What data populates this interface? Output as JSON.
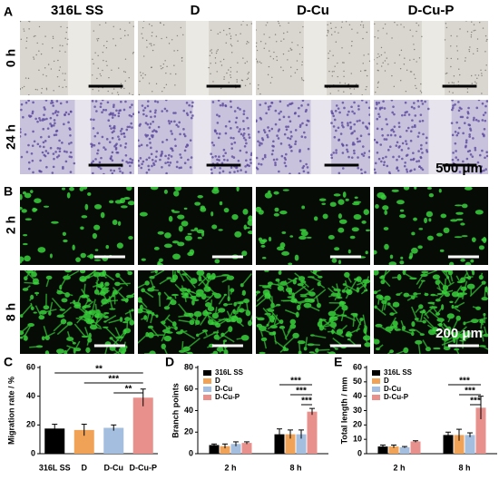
{
  "figure": {
    "panel_labels": [
      "A",
      "B"
    ],
    "columns": [
      "316L SS",
      "D",
      "D-Cu",
      "D-Cu-P"
    ],
    "rows_a": [
      "0 h",
      "24 h"
    ],
    "rows_b": [
      "2 h",
      "8 h"
    ],
    "scale_a": "500 μm",
    "scale_b": "200 μm"
  },
  "chart_data": [
    {
      "type": "bar",
      "panel": "C",
      "ylabel": "Migration rate / %",
      "categories": [
        "316L SS",
        "D",
        "D-Cu",
        "D-Cu-P"
      ],
      "values": [
        17.5,
        16.5,
        18,
        39
      ],
      "errors": [
        3,
        4,
        2,
        6
      ],
      "colors": [
        "#000000",
        "#f0a257",
        "#a3bede",
        "#e8918c"
      ],
      "ylim": [
        0,
        60
      ],
      "yticks": [
        0,
        20,
        40,
        60
      ],
      "significance": [
        {
          "from": "316L SS",
          "to": "D-Cu-P",
          "label": "**"
        },
        {
          "from": "D",
          "to": "D-Cu-P",
          "label": "***"
        },
        {
          "from": "D-Cu",
          "to": "D-Cu-P",
          "label": "**"
        }
      ]
    },
    {
      "type": "grouped-bar",
      "panel": "D",
      "ylabel": "Branch points",
      "categories": [
        "2 h",
        "8 h"
      ],
      "series": [
        {
          "name": "316L SS",
          "color": "#000000",
          "values": [
            8,
            18
          ],
          "errors": [
            1,
            5
          ]
        },
        {
          "name": "D",
          "color": "#f0a257",
          "values": [
            7,
            18
          ],
          "errors": [
            2,
            4
          ]
        },
        {
          "name": "D-Cu",
          "color": "#a3bede",
          "values": [
            9,
            18
          ],
          "errors": [
            2,
            4
          ]
        },
        {
          "name": "D-Cu-P",
          "color": "#e8918c",
          "values": [
            10,
            39
          ],
          "errors": [
            1,
            3
          ]
        }
      ],
      "ylim": [
        0,
        80
      ],
      "yticks": [
        0,
        20,
        40,
        60,
        80
      ],
      "significance": [
        {
          "group": "8 h",
          "from": "316L SS",
          "to": "D-Cu-P",
          "label": "***"
        },
        {
          "group": "8 h",
          "from": "D",
          "to": "D-Cu-P",
          "label": "***"
        },
        {
          "group": "8 h",
          "from": "D-Cu",
          "to": "D-Cu-P",
          "label": "***"
        }
      ]
    },
    {
      "type": "grouped-bar",
      "panel": "E",
      "ylabel": "Total length / mm",
      "categories": [
        "2 h",
        "8 h"
      ],
      "series": [
        {
          "name": "316L SS",
          "color": "#000000",
          "values": [
            5,
            13
          ],
          "errors": [
            1,
            2
          ]
        },
        {
          "name": "D",
          "color": "#f0a257",
          "values": [
            5,
            13
          ],
          "errors": [
            1,
            4
          ]
        },
        {
          "name": "D-Cu",
          "color": "#a3bede",
          "values": [
            4.5,
            13
          ],
          "errors": [
            0.5,
            1.5
          ]
        },
        {
          "name": "D-Cu-P",
          "color": "#e8918c",
          "values": [
            8.5,
            32
          ],
          "errors": [
            0.5,
            8
          ]
        }
      ],
      "ylim": [
        0,
        60
      ],
      "yticks": [
        0,
        10,
        20,
        30,
        40,
        50,
        60
      ],
      "significance": [
        {
          "group": "8 h",
          "from": "316L SS",
          "to": "D-Cu-P",
          "label": "***"
        },
        {
          "group": "8 h",
          "from": "D",
          "to": "D-Cu-P",
          "label": "***"
        },
        {
          "group": "8 h",
          "from": "D-Cu",
          "to": "D-Cu-P",
          "label": "***"
        }
      ]
    }
  ]
}
